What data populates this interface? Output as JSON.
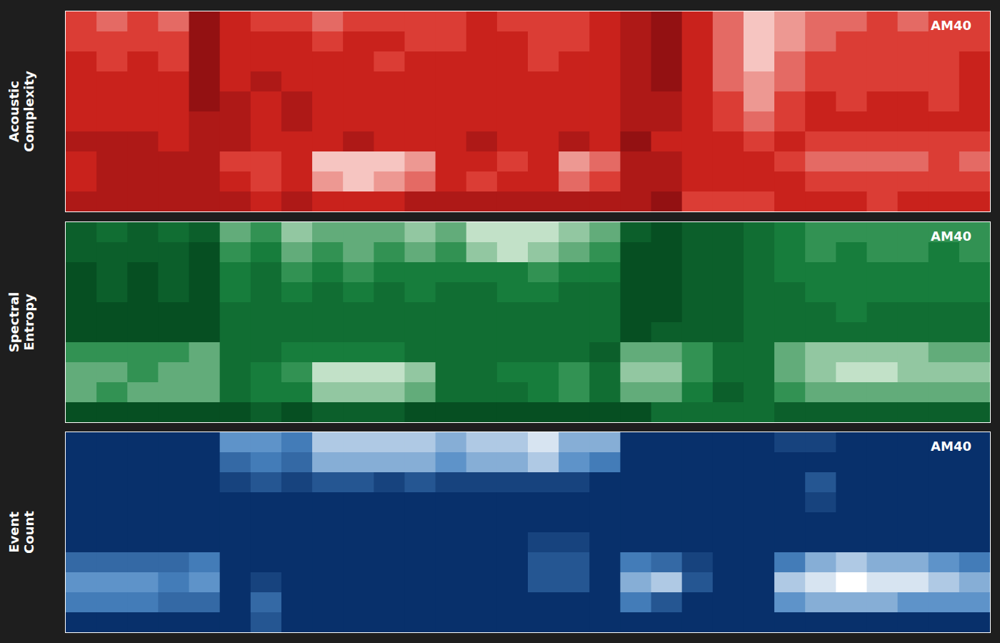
{
  "chart_data": [
    {
      "type": "heatmap",
      "title": "AM40",
      "ylabel": "Acoustic Complexity",
      "tick_labels": false,
      "colors": [
        "#5c0009",
        "#d7261e",
        "#fff3ef"
      ],
      "zlim": [
        0,
        9
      ],
      "cells": [
        [
          5,
          6,
          5,
          6,
          2,
          4,
          5,
          5,
          6,
          5,
          5,
          5,
          5,
          4,
          5,
          5,
          5,
          4,
          3,
          2,
          4,
          6,
          8,
          7,
          6,
          6,
          5,
          6,
          5,
          5
        ],
        [
          5,
          5,
          5,
          5,
          2,
          4,
          4,
          4,
          5,
          4,
          4,
          5,
          5,
          4,
          4,
          5,
          5,
          4,
          3,
          2,
          4,
          6,
          8,
          7,
          6,
          5,
          5,
          5,
          5,
          5
        ],
        [
          4,
          5,
          4,
          5,
          2,
          4,
          4,
          4,
          4,
          4,
          5,
          4,
          4,
          4,
          4,
          5,
          4,
          4,
          3,
          2,
          4,
          6,
          8,
          6,
          5,
          5,
          5,
          5,
          5,
          4
        ],
        [
          4,
          4,
          4,
          4,
          2,
          4,
          3,
          4,
          4,
          4,
          4,
          4,
          4,
          4,
          4,
          4,
          4,
          4,
          3,
          2,
          4,
          6,
          7,
          6,
          5,
          5,
          5,
          5,
          5,
          4
        ],
        [
          4,
          4,
          4,
          4,
          2,
          3,
          4,
          3,
          4,
          4,
          4,
          4,
          4,
          4,
          4,
          4,
          4,
          4,
          3,
          3,
          4,
          5,
          7,
          5,
          4,
          5,
          4,
          4,
          5,
          4
        ],
        [
          4,
          4,
          4,
          4,
          3,
          3,
          4,
          3,
          4,
          4,
          4,
          4,
          4,
          4,
          4,
          4,
          4,
          4,
          3,
          3,
          4,
          5,
          6,
          5,
          4,
          4,
          4,
          4,
          4,
          4
        ],
        [
          3,
          3,
          3,
          4,
          3,
          3,
          4,
          4,
          4,
          3,
          4,
          4,
          4,
          3,
          4,
          4,
          3,
          4,
          2,
          4,
          4,
          4,
          5,
          4,
          5,
          5,
          5,
          5,
          5,
          5
        ],
        [
          4,
          3,
          3,
          3,
          3,
          5,
          5,
          4,
          8,
          8,
          8,
          7,
          4,
          4,
          5,
          4,
          7,
          6,
          3,
          3,
          4,
          4,
          4,
          5,
          6,
          6,
          6,
          6,
          5,
          6
        ],
        [
          4,
          3,
          3,
          3,
          3,
          4,
          5,
          4,
          7,
          8,
          7,
          6,
          4,
          5,
          4,
          4,
          6,
          5,
          3,
          3,
          4,
          4,
          4,
          4,
          5,
          5,
          5,
          5,
          5,
          5
        ],
        [
          3,
          3,
          3,
          3,
          3,
          3,
          4,
          3,
          4,
          4,
          4,
          3,
          3,
          3,
          3,
          3,
          3,
          3,
          3,
          2,
          5,
          5,
          5,
          4,
          4,
          4,
          5,
          4,
          4,
          4
        ]
      ]
    },
    {
      "type": "heatmap",
      "title": "AM40",
      "ylabel": "Spectral Entropy",
      "tick_labels": false,
      "colors": [
        "#00401a",
        "#1a8540",
        "#f2fbef"
      ],
      "zlim": [
        0,
        9
      ],
      "cells": [
        [
          2,
          3,
          2,
          3,
          2,
          6,
          5,
          7,
          6,
          6,
          6,
          7,
          6,
          8,
          8,
          8,
          7,
          6,
          2,
          1,
          2,
          2,
          3,
          4,
          5,
          5,
          5,
          5,
          5,
          5
        ],
        [
          2,
          2,
          2,
          2,
          1,
          5,
          4,
          6,
          5,
          6,
          5,
          6,
          5,
          7,
          8,
          7,
          6,
          5,
          1,
          1,
          2,
          2,
          3,
          4,
          5,
          4,
          5,
          5,
          4,
          5
        ],
        [
          1,
          2,
          1,
          2,
          1,
          4,
          3,
          5,
          4,
          5,
          4,
          4,
          4,
          4,
          4,
          5,
          4,
          4,
          1,
          1,
          2,
          2,
          3,
          4,
          4,
          4,
          4,
          4,
          4,
          4
        ],
        [
          1,
          2,
          1,
          2,
          1,
          4,
          3,
          4,
          3,
          4,
          3,
          4,
          3,
          3,
          4,
          4,
          3,
          3,
          1,
          1,
          2,
          2,
          3,
          3,
          4,
          4,
          4,
          4,
          4,
          4
        ],
        [
          1,
          1,
          1,
          1,
          1,
          3,
          3,
          3,
          3,
          3,
          3,
          3,
          3,
          3,
          3,
          3,
          3,
          3,
          1,
          1,
          2,
          2,
          3,
          3,
          3,
          4,
          3,
          3,
          3,
          3
        ],
        [
          1,
          1,
          1,
          1,
          1,
          3,
          3,
          3,
          3,
          3,
          3,
          3,
          3,
          3,
          3,
          3,
          3,
          3,
          1,
          2,
          2,
          2,
          3,
          3,
          3,
          3,
          3,
          3,
          3,
          3
        ],
        [
          5,
          5,
          5,
          5,
          6,
          3,
          3,
          4,
          4,
          4,
          4,
          3,
          3,
          3,
          3,
          3,
          3,
          2,
          6,
          6,
          5,
          3,
          3,
          6,
          7,
          7,
          7,
          7,
          6,
          6
        ],
        [
          6,
          6,
          5,
          6,
          6,
          3,
          4,
          5,
          8,
          8,
          8,
          7,
          3,
          3,
          4,
          4,
          5,
          3,
          7,
          7,
          5,
          3,
          3,
          6,
          7,
          8,
          8,
          7,
          7,
          7
        ],
        [
          6,
          5,
          6,
          6,
          6,
          3,
          4,
          4,
          7,
          7,
          7,
          6,
          3,
          3,
          3,
          4,
          5,
          3,
          6,
          6,
          4,
          2,
          3,
          5,
          6,
          6,
          6,
          6,
          6,
          6
        ],
        [
          1,
          1,
          1,
          1,
          1,
          1,
          2,
          1,
          2,
          2,
          2,
          1,
          1,
          1,
          1,
          1,
          1,
          1,
          1,
          3,
          3,
          3,
          3,
          2,
          2,
          2,
          2,
          2,
          2,
          2
        ]
      ]
    },
    {
      "type": "heatmap",
      "title": "AM40",
      "ylabel": "Event Count",
      "tick_labels": false,
      "colors": [
        "#08306b",
        "#4a86c2",
        "#ffffff"
      ],
      "zlim": [
        0,
        9
      ],
      "cells": [
        [
          0,
          0,
          0,
          0,
          0,
          5,
          5,
          4,
          7,
          7,
          7,
          7,
          6,
          7,
          7,
          8,
          6,
          6,
          0,
          0,
          0,
          0,
          0,
          1,
          1,
          0,
          0,
          0,
          0,
          0
        ],
        [
          0,
          0,
          0,
          0,
          0,
          3,
          4,
          3,
          6,
          6,
          6,
          6,
          5,
          6,
          6,
          7,
          5,
          4,
          0,
          0,
          0,
          0,
          0,
          0,
          0,
          0,
          0,
          0,
          0,
          0
        ],
        [
          0,
          0,
          0,
          0,
          0,
          1,
          2,
          1,
          2,
          2,
          1,
          2,
          1,
          1,
          1,
          1,
          1,
          0,
          0,
          0,
          0,
          0,
          0,
          0,
          2,
          0,
          0,
          0,
          0,
          0
        ],
        [
          0,
          0,
          0,
          0,
          0,
          0,
          0,
          0,
          0,
          0,
          0,
          0,
          0,
          0,
          0,
          0,
          0,
          0,
          0,
          0,
          0,
          0,
          0,
          0,
          1,
          0,
          0,
          0,
          0,
          0
        ],
        [
          0,
          0,
          0,
          0,
          0,
          0,
          0,
          0,
          0,
          0,
          0,
          0,
          0,
          0,
          0,
          0,
          0,
          0,
          0,
          0,
          0,
          0,
          0,
          0,
          0,
          0,
          0,
          0,
          0,
          0
        ],
        [
          0,
          0,
          0,
          0,
          0,
          0,
          0,
          0,
          0,
          0,
          0,
          0,
          0,
          0,
          0,
          1,
          1,
          0,
          0,
          0,
          0,
          0,
          0,
          0,
          0,
          0,
          0,
          0,
          0,
          0
        ],
        [
          3,
          3,
          3,
          3,
          4,
          0,
          0,
          0,
          0,
          0,
          0,
          0,
          0,
          0,
          0,
          2,
          2,
          0,
          4,
          3,
          1,
          0,
          0,
          4,
          6,
          7,
          6,
          6,
          5,
          4
        ],
        [
          5,
          5,
          5,
          4,
          5,
          0,
          1,
          0,
          0,
          0,
          0,
          0,
          0,
          0,
          0,
          2,
          2,
          0,
          6,
          7,
          2,
          0,
          0,
          7,
          8,
          9,
          8,
          8,
          7,
          6
        ],
        [
          4,
          4,
          4,
          3,
          3,
          0,
          3,
          0,
          0,
          0,
          0,
          0,
          0,
          0,
          0,
          0,
          0,
          0,
          4,
          2,
          0,
          0,
          0,
          5,
          6,
          6,
          6,
          5,
          5,
          5
        ],
        [
          0,
          0,
          0,
          0,
          0,
          0,
          2,
          0,
          0,
          0,
          0,
          0,
          0,
          0,
          0,
          0,
          0,
          0,
          0,
          0,
          0,
          0,
          0,
          0,
          0,
          0,
          0,
          0,
          0,
          0
        ]
      ]
    }
  ]
}
